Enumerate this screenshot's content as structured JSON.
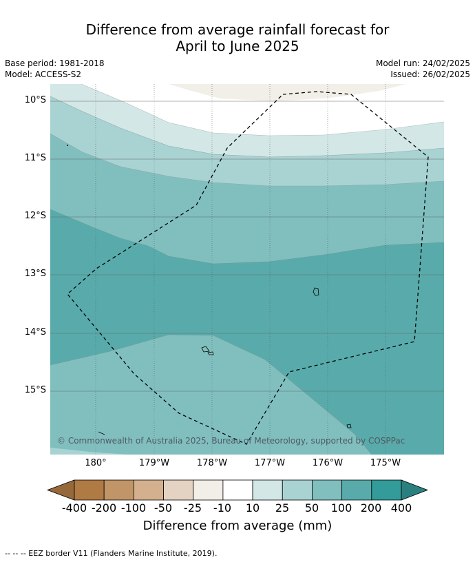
{
  "title": {
    "line1": "Difference from average rainfall forecast for",
    "line2": "April to June 2025"
  },
  "meta": {
    "base_period": "Base period: 1981-2018",
    "model": "Model: ACCESS-S2",
    "model_run": "Model run: 24/02/2025",
    "issued": "Issued: 26/02/2025"
  },
  "map": {
    "lat_labels": [
      "10°S",
      "11°S",
      "12°S",
      "13°S",
      "14°S",
      "15°S"
    ],
    "lon_labels": [
      "180°",
      "179°W",
      "178°W",
      "177°W",
      "176°W",
      "175°W"
    ],
    "credit": "© Commonwealth of Australia 2025, Bureau of Meteorology, supported by COSPPac",
    "border_layer": "EEZ border (dashed)",
    "islands": [
      "island-a",
      "island-b",
      "island-c",
      "island-d"
    ]
  },
  "colorbar": {
    "labels": [
      "-400",
      "-200",
      "-100",
      "-50",
      "-25",
      "-10",
      "10",
      "25",
      "50",
      "100",
      "200",
      "400"
    ],
    "colors": [
      "#96683a",
      "#b07a45",
      "#c19568",
      "#d4b08e",
      "#e4d3c2",
      "#f2eee8",
      "#ffffff",
      "#d3e7e7",
      "#a9d3d3",
      "#81bfbf",
      "#59abab",
      "#339b9a",
      "#29807f"
    ],
    "title": "Difference from average (mm)"
  },
  "footnote": "-- -- -- EEZ border V11 (Flanders Marine Institute, 2019)."
}
